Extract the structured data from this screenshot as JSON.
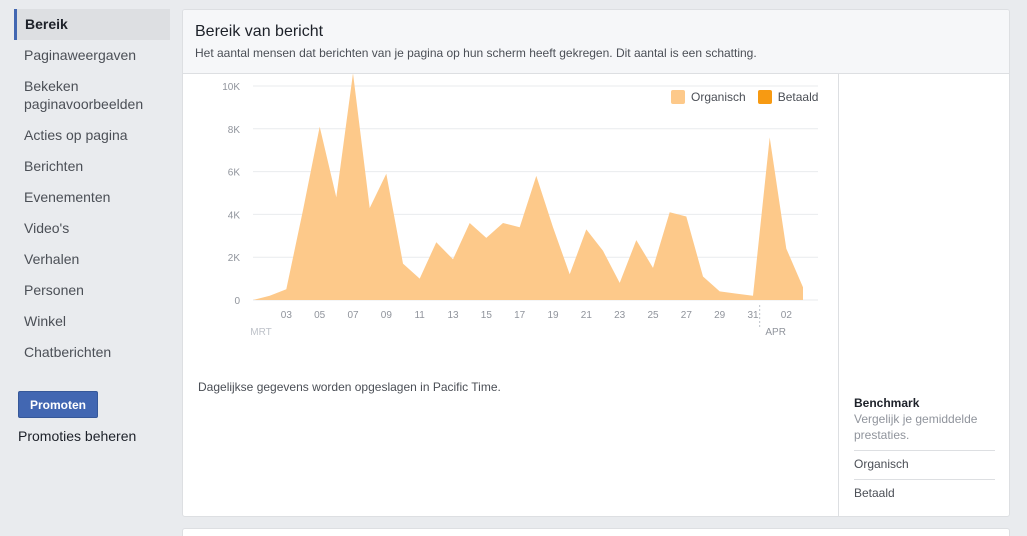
{
  "sidebar": {
    "items": [
      {
        "label": "Bereik",
        "name": "sidebar-item-bereik"
      },
      {
        "label": "Paginaweergaven",
        "name": "sidebar-item-paginaweergaven"
      },
      {
        "label": "Bekeken paginavoorbeelden",
        "name": "sidebar-item-paginavoorbeelden"
      },
      {
        "label": "Acties op pagina",
        "name": "sidebar-item-acties"
      },
      {
        "label": "Berichten",
        "name": "sidebar-item-berichten"
      },
      {
        "label": "Evenementen",
        "name": "sidebar-item-evenementen"
      },
      {
        "label": "Video's",
        "name": "sidebar-item-videos"
      },
      {
        "label": "Verhalen",
        "name": "sidebar-item-verhalen"
      },
      {
        "label": "Personen",
        "name": "sidebar-item-personen"
      },
      {
        "label": "Winkel",
        "name": "sidebar-item-winkel"
      },
      {
        "label": "Chatberichten",
        "name": "sidebar-item-chatberichten"
      }
    ],
    "promote_label": "Promoten",
    "manage_label": "Promoties beheren"
  },
  "card": {
    "title": "Bereik van bericht",
    "subtitle": "Het aantal mensen dat berichten van je pagina op hun scherm heeft gekregen. Dit aantal is een schatting.",
    "footnote": "Dagelijkse gegevens worden opgeslagen in Pacific Time."
  },
  "legend": {
    "organic": "Organisch",
    "paid": "Betaald"
  },
  "benchmark": {
    "title": "Benchmark",
    "description": "Vergelijk je gemiddelde prestaties.",
    "organic": "Organisch",
    "paid": "Betaald"
  },
  "colors": {
    "organic": "#fdc98a",
    "paid": "#f79a12",
    "accent": "#4267b2"
  },
  "chart_data": {
    "type": "area",
    "ylim": [
      0,
      10000
    ],
    "yticks": [
      "0",
      "2K",
      "4K",
      "6K",
      "8K",
      "10K"
    ],
    "x_month_labels": [
      "MRT",
      "APR"
    ],
    "x": [
      "01",
      "02",
      "03",
      "04",
      "05",
      "06",
      "07",
      "08",
      "09",
      "10",
      "11",
      "12",
      "13",
      "14",
      "15",
      "16",
      "17",
      "18",
      "19",
      "20",
      "21",
      "22",
      "23",
      "24",
      "25",
      "26",
      "27",
      "28",
      "29",
      "30",
      "31",
      "01",
      "02",
      "03"
    ],
    "x_tick_labels": [
      "03",
      "05",
      "07",
      "09",
      "11",
      "13",
      "15",
      "17",
      "19",
      "21",
      "23",
      "25",
      "27",
      "29",
      "31",
      "02"
    ],
    "series": [
      {
        "name": "Organisch",
        "values": [
          0,
          200,
          500,
          4200,
          8100,
          4800,
          10600,
          4300,
          5900,
          1700,
          1000,
          2700,
          1900,
          3600,
          2900,
          3600,
          3400,
          5800,
          3400,
          1200,
          3300,
          2300,
          800,
          2800,
          1500,
          4100,
          3900,
          1100,
          400,
          300,
          200,
          7600,
          2400,
          600
        ]
      },
      {
        "name": "Betaald",
        "values": [
          0,
          0,
          0,
          0,
          0,
          0,
          0,
          0,
          0,
          0,
          0,
          0,
          0,
          0,
          0,
          0,
          0,
          0,
          0,
          0,
          0,
          0,
          0,
          0,
          0,
          0,
          0,
          0,
          0,
          0,
          0,
          0,
          0,
          0
        ]
      }
    ]
  }
}
